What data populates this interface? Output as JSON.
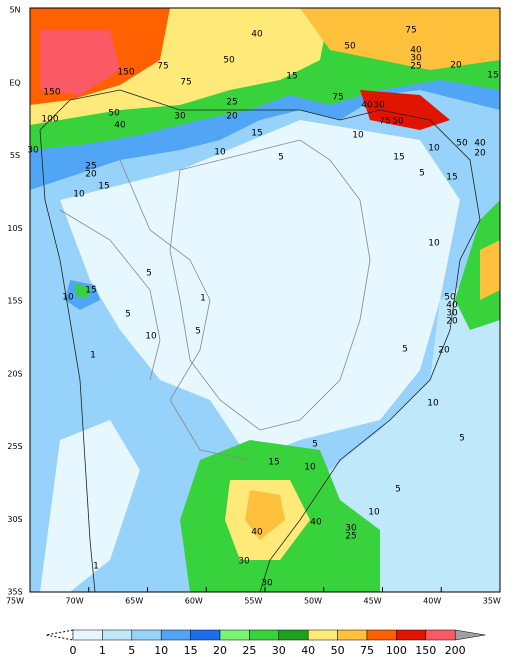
{
  "axes": {
    "longitude_labels": [
      "75W",
      "70W",
      "65W",
      "60W",
      "55W",
      "50W",
      "45W",
      "40W",
      "35W"
    ],
    "latitude_labels": [
      "5N",
      "EQ",
      "5S",
      "10S",
      "15S",
      "20S",
      "25S",
      "30S",
      "35S"
    ]
  },
  "contour_labels": [
    "75",
    "50",
    "40",
    "40",
    "30",
    "25",
    "20",
    "15",
    "150",
    "75",
    "75",
    "50",
    "15",
    "150",
    "50",
    "40",
    "30",
    "25",
    "20",
    "75",
    "40",
    "30",
    "75",
    "50",
    "100",
    "10",
    "15",
    "10",
    "50",
    "40",
    "20",
    "30",
    "10",
    "5",
    "15",
    "25",
    "20",
    "15",
    "10",
    "5",
    "15",
    "10",
    "5",
    "10",
    "15",
    "5",
    "10",
    "5",
    "50",
    "40",
    "30",
    "20",
    "5",
    "20",
    "10",
    "5",
    "5",
    "15",
    "10",
    "5",
    "10",
    "40",
    "30",
    "25",
    "40",
    "30",
    "30",
    "1",
    "1",
    "1"
  ],
  "colorbar": {
    "labels": [
      "0",
      "1",
      "5",
      "10",
      "15",
      "20",
      "25",
      "30",
      "40",
      "50",
      "75",
      "100",
      "150",
      "200"
    ]
  }
}
